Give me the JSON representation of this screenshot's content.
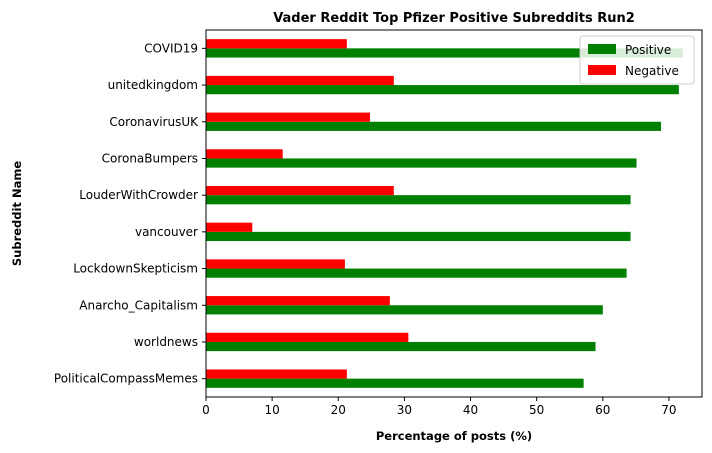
{
  "chart_data": {
    "type": "bar",
    "orientation": "horizontal",
    "title": "Vader Reddit Top Pfizer Positive Subreddits Run2",
    "xlabel": "Percentage of posts (%)",
    "ylabel": "Subreddit Name",
    "xlim": [
      0,
      75
    ],
    "xticks": [
      0,
      10,
      20,
      30,
      40,
      50,
      60,
      70
    ],
    "categories": [
      "COVID19",
      "unitedkingdom",
      "CoronavirusUK",
      "CoronaBumpers",
      "LouderWithCrowder",
      "vancouver",
      "LockdownSkepticism",
      "Anarcho_Capitalism",
      "worldnews",
      "PoliticalCompassMemes"
    ],
    "series": [
      {
        "name": "Positive",
        "color": "#008000",
        "values": [
          72.1,
          71.5,
          68.8,
          65.1,
          64.2,
          64.2,
          63.6,
          60.0,
          58.9,
          57.1
        ]
      },
      {
        "name": "Negative",
        "color": "#ff0000",
        "values": [
          21.3,
          28.4,
          24.8,
          11.6,
          28.4,
          7.0,
          21.0,
          27.8,
          30.6,
          21.3
        ]
      }
    ],
    "legend": "top-right",
    "grid": false
  }
}
